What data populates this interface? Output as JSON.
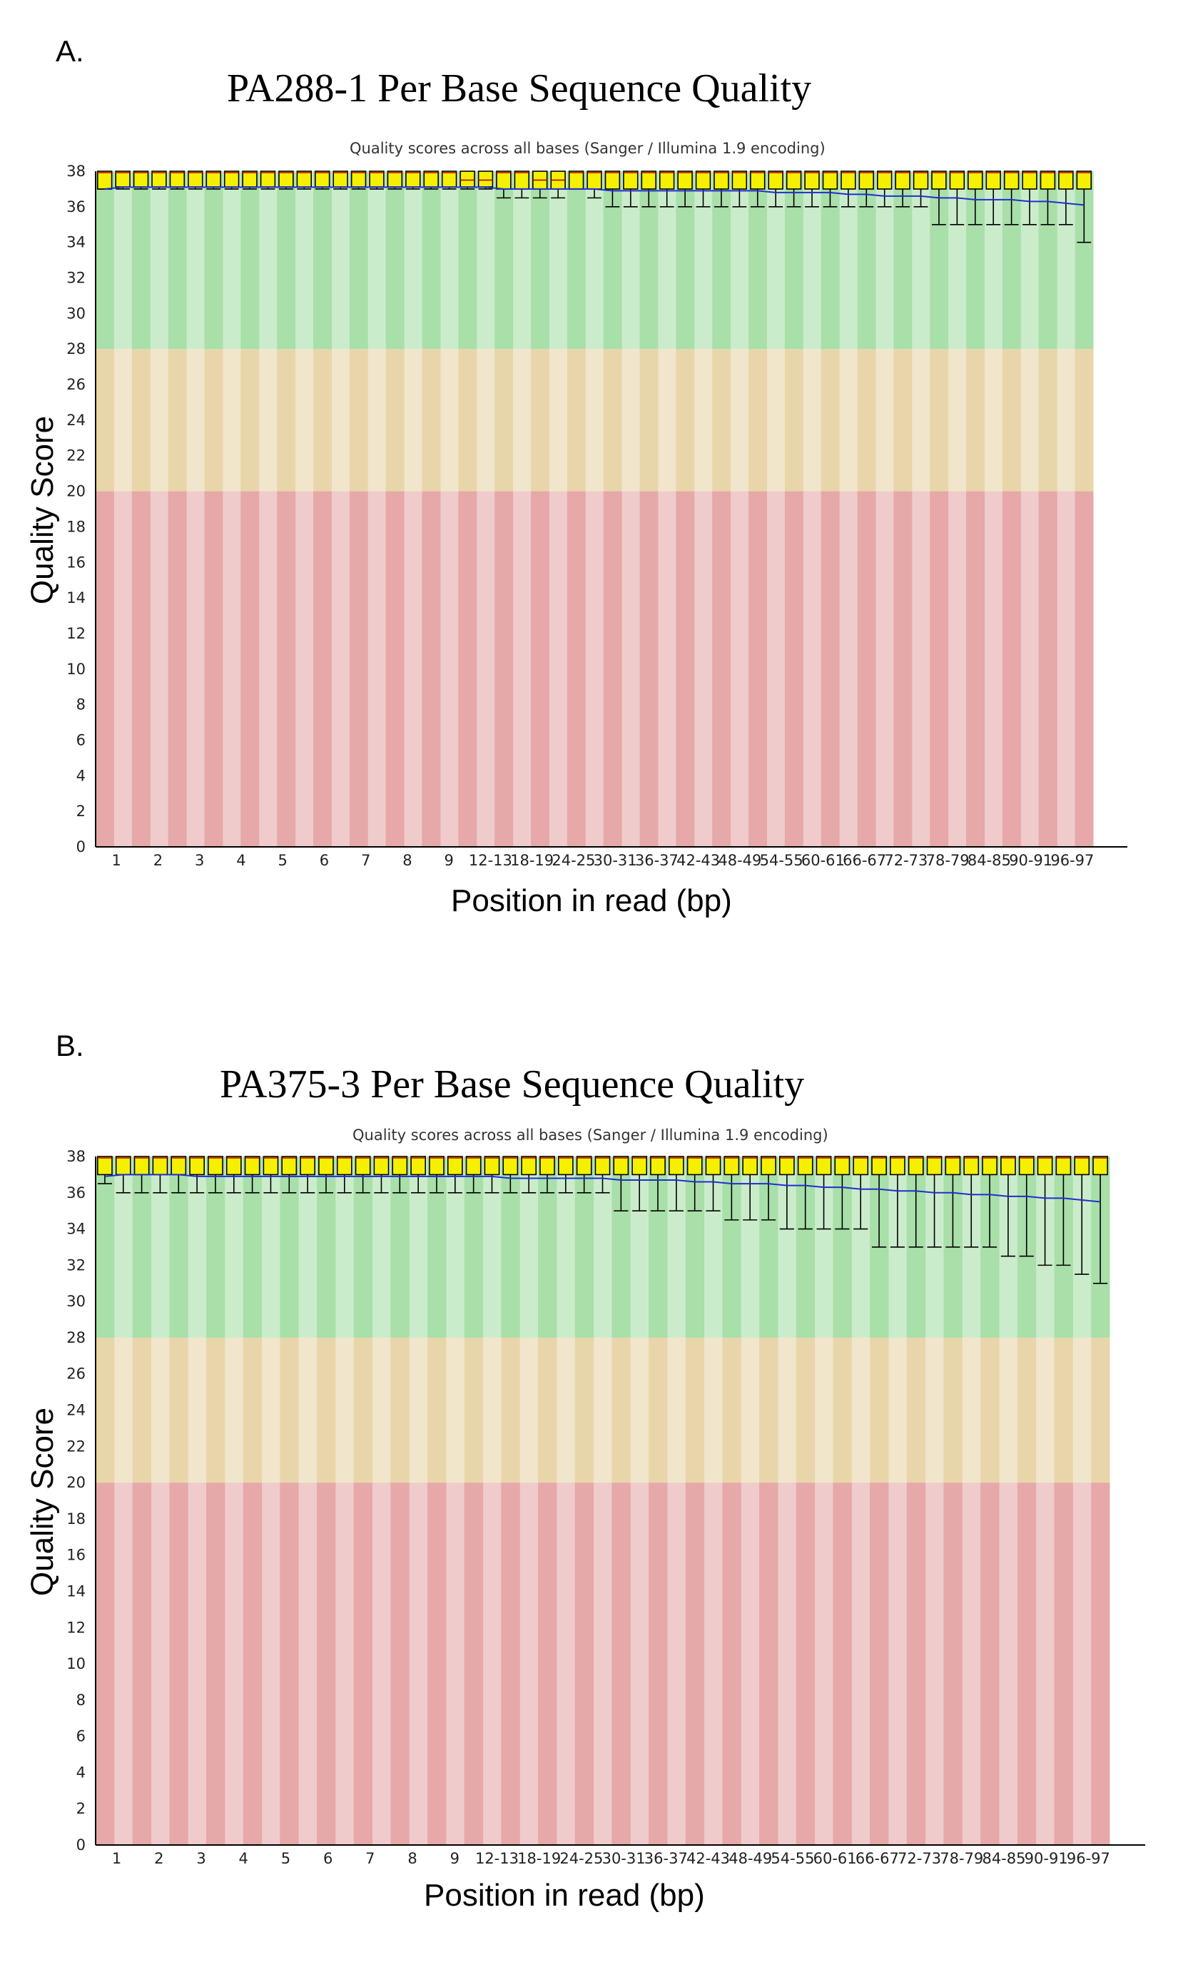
{
  "chart_data": [
    {
      "type": "box",
      "panel_label": "A.",
      "title": "PA288-1 Per Base Sequence Quality",
      "subtitle": "Quality scores across all bases (Sanger / Illumina 1.9 encoding)",
      "xlabel": "Position in read (bp)",
      "ylabel": "Quality Score",
      "ylim": [
        0,
        38
      ],
      "yticks": [
        0,
        2,
        4,
        6,
        8,
        10,
        12,
        14,
        16,
        18,
        20,
        22,
        24,
        26,
        28,
        30,
        32,
        34,
        36,
        38
      ],
      "zones": [
        {
          "name": "poor",
          "from": 0,
          "to": 20,
          "color": "#e6a8a8"
        },
        {
          "name": "reasonable",
          "from": 20,
          "to": 28,
          "color": "#e8d6aa"
        },
        {
          "name": "good",
          "from": 28,
          "to": 38,
          "color": "#a9dfa9"
        }
      ],
      "categories": [
        "1",
        "2",
        "3",
        "4",
        "5",
        "6",
        "7",
        "8",
        "9",
        "10-11",
        "12-13",
        "14-15",
        "16-17",
        "18-19",
        "20-21",
        "22-23",
        "24-25",
        "26-27",
        "28-29",
        "30-31",
        "32-33",
        "34-35",
        "36-37",
        "38-39",
        "40-41",
        "42-43",
        "44-45",
        "46-47",
        "48-49",
        "50-51",
        "52-53",
        "54-55",
        "56-57",
        "58-59",
        "60-61",
        "62-63",
        "64-65",
        "66-67",
        "68-69",
        "70-71",
        "72-73",
        "74-75",
        "76-77",
        "78-79",
        "80-81",
        "82-83",
        "84-85",
        "86-87",
        "88-89",
        "90-91",
        "92-93",
        "94-95",
        "96-97",
        "98-99",
        "100-101"
      ],
      "tick_labels": [
        "1",
        "2",
        "3",
        "4",
        "5",
        "6",
        "7",
        "8",
        "9",
        "12-13",
        "18-19",
        "24-25",
        "30-31",
        "36-37",
        "42-43",
        "48-49",
        "54-55",
        "60-61",
        "66-67",
        "72-73",
        "78-79",
        "84-85",
        "90-91",
        "96-97"
      ],
      "series": [
        {
          "name": "upper_quartile",
          "values": [
            38,
            38,
            38,
            38,
            38,
            38,
            38,
            38,
            38,
            38,
            38,
            38,
            38,
            38,
            38,
            38,
            38,
            38,
            38,
            38,
            38,
            38,
            38,
            38,
            38,
            38,
            38,
            38,
            38,
            38,
            38,
            38,
            38,
            38,
            38,
            38,
            38,
            38,
            38,
            38,
            38,
            38,
            38,
            38,
            38,
            38,
            38,
            38,
            38,
            38,
            38,
            38,
            38,
            38,
            38
          ]
        },
        {
          "name": "median",
          "values": [
            38,
            38,
            38,
            38,
            38,
            38,
            38,
            38,
            38,
            38,
            38,
            38,
            38,
            38,
            38,
            38,
            38,
            38,
            38,
            38,
            37.5,
            37.5,
            38,
            38,
            37.5,
            37.5,
            38,
            38,
            38,
            38,
            38,
            38,
            38,
            38,
            38,
            38,
            38,
            38,
            38,
            38,
            38,
            38,
            38,
            38,
            38,
            38,
            38,
            38,
            38,
            38,
            38,
            38,
            38,
            38,
            38
          ]
        },
        {
          "name": "lower_quartile",
          "values": [
            37,
            37.2,
            37.2,
            37.2,
            37.2,
            37.2,
            37.2,
            37.2,
            37.2,
            37.2,
            37.2,
            37.2,
            37.2,
            37.2,
            37.2,
            37.2,
            37.2,
            37.2,
            37.2,
            37.2,
            37.2,
            37.2,
            37,
            37,
            37,
            37,
            37,
            37,
            37,
            37,
            37,
            37,
            37,
            37,
            37,
            37,
            37,
            37,
            37,
            37,
            37,
            37,
            37,
            37,
            37,
            37,
            37,
            37,
            37,
            37,
            37,
            37,
            37,
            37,
            37
          ]
        },
        {
          "name": "lower_whisker",
          "values": [
            37,
            37,
            37,
            37,
            37,
            37,
            37,
            37,
            37,
            37,
            37,
            37,
            37,
            37,
            37,
            37,
            37,
            37,
            37,
            37,
            37,
            37,
            36.5,
            36.5,
            36.5,
            36.5,
            37,
            36.5,
            36,
            36,
            36,
            36,
            36,
            36,
            36,
            36,
            36,
            36,
            36,
            36,
            36,
            36,
            36,
            36,
            36,
            36,
            35,
            35,
            35,
            35,
            35,
            35,
            35,
            35,
            34
          ]
        },
        {
          "name": "mean",
          "values": [
            37.0,
            37.1,
            37.1,
            37.1,
            37.1,
            37.1,
            37.1,
            37.1,
            37.1,
            37.1,
            37.1,
            37.1,
            37.1,
            37.1,
            37.1,
            37.1,
            37.1,
            37.1,
            37.1,
            37.1,
            37.1,
            37.1,
            37.0,
            37.0,
            37.0,
            37.0,
            37.0,
            37.0,
            36.9,
            36.9,
            36.9,
            36.9,
            36.9,
            36.9,
            36.9,
            36.9,
            36.9,
            36.8,
            36.8,
            36.8,
            36.8,
            36.7,
            36.7,
            36.6,
            36.6,
            36.6,
            36.5,
            36.5,
            36.4,
            36.4,
            36.4,
            36.3,
            36.3,
            36.2,
            36.1
          ]
        }
      ]
    },
    {
      "type": "box",
      "panel_label": "B.",
      "title": "PA375-3 Per Base Sequence Quality",
      "subtitle": "Quality scores across all bases (Sanger / Illumina 1.9 encoding)",
      "xlabel": "Position in read (bp)",
      "ylabel": "Quality Score",
      "ylim": [
        0,
        38
      ],
      "yticks": [
        0,
        2,
        4,
        6,
        8,
        10,
        12,
        14,
        16,
        18,
        20,
        22,
        24,
        26,
        28,
        30,
        32,
        34,
        36,
        38
      ],
      "zones": [
        {
          "name": "poor",
          "from": 0,
          "to": 20,
          "color": "#e6a8a8"
        },
        {
          "name": "reasonable",
          "from": 20,
          "to": 28,
          "color": "#e8d6aa"
        },
        {
          "name": "good",
          "from": 28,
          "to": 38,
          "color": "#a9dfa9"
        }
      ],
      "categories": [
        "1",
        "2",
        "3",
        "4",
        "5",
        "6",
        "7",
        "8",
        "9",
        "10-11",
        "12-13",
        "14-15",
        "16-17",
        "18-19",
        "20-21",
        "22-23",
        "24-25",
        "26-27",
        "28-29",
        "30-31",
        "32-33",
        "34-35",
        "36-37",
        "38-39",
        "40-41",
        "42-43",
        "44-45",
        "46-47",
        "48-49",
        "50-51",
        "52-53",
        "54-55",
        "56-57",
        "58-59",
        "60-61",
        "62-63",
        "64-65",
        "66-67",
        "68-69",
        "70-71",
        "72-73",
        "74-75",
        "76-77",
        "78-79",
        "80-81",
        "82-83",
        "84-85",
        "86-87",
        "88-89",
        "90-91",
        "92-93",
        "94-95",
        "96-97",
        "98-99",
        "100-101"
      ],
      "tick_labels": [
        "1",
        "2",
        "3",
        "4",
        "5",
        "6",
        "7",
        "8",
        "9",
        "12-13",
        "18-19",
        "24-25",
        "30-31",
        "36-37",
        "42-43",
        "48-49",
        "54-55",
        "60-61",
        "66-67",
        "72-73",
        "78-79",
        "84-85",
        "90-91",
        "96-97"
      ],
      "series": [
        {
          "name": "upper_quartile",
          "values": [
            38,
            38,
            38,
            38,
            38,
            38,
            38,
            38,
            38,
            38,
            38,
            38,
            38,
            38,
            38,
            38,
            38,
            38,
            38,
            38,
            38,
            38,
            38,
            38,
            38,
            38,
            38,
            38,
            38,
            38,
            38,
            38,
            38,
            38,
            38,
            38,
            38,
            38,
            38,
            38,
            38,
            38,
            38,
            38,
            38,
            38,
            38,
            38,
            38,
            38,
            38,
            38,
            38,
            38,
            38
          ]
        },
        {
          "name": "median",
          "values": [
            38,
            38,
            38,
            38,
            38,
            38,
            38,
            38,
            38,
            38,
            38,
            38,
            38,
            38,
            38,
            38,
            38,
            38,
            38,
            38,
            38,
            38,
            38,
            38,
            38,
            38,
            38,
            38,
            38,
            38,
            38,
            38,
            38,
            38,
            38,
            38,
            38,
            38,
            38,
            38,
            38,
            38,
            38,
            38,
            38,
            38,
            38,
            38,
            38,
            38,
            38,
            38,
            38,
            38,
            38
          ]
        },
        {
          "name": "lower_quartile",
          "values": [
            37,
            37,
            37,
            37,
            37,
            37,
            37,
            37,
            37,
            37,
            37,
            37,
            37,
            37,
            37,
            37,
            37,
            37,
            37,
            37,
            37,
            37,
            37,
            37,
            37,
            37,
            37,
            37,
            37,
            37,
            37,
            37,
            37,
            37,
            37,
            37,
            37,
            37,
            37,
            37,
            37,
            37,
            37,
            37,
            37,
            37,
            37,
            37,
            37,
            37,
            37,
            37,
            37,
            37,
            37
          ]
        },
        {
          "name": "lower_whisker",
          "values": [
            36.5,
            36,
            36,
            36,
            36,
            36,
            36,
            36,
            36,
            36,
            36,
            36,
            36,
            36,
            36,
            36,
            36,
            36,
            36,
            36,
            36,
            36,
            36,
            36,
            36,
            36,
            36,
            36,
            35,
            35,
            35,
            35,
            35,
            35,
            34.5,
            34.5,
            34.5,
            34,
            34,
            34,
            34,
            34,
            33,
            33,
            33,
            33,
            33,
            33,
            33,
            32.5,
            32.5,
            32,
            32,
            31.5,
            31
          ]
        },
        {
          "name": "mean",
          "values": [
            36.9,
            37.0,
            37.0,
            37.0,
            37.0,
            36.9,
            36.9,
            36.9,
            36.9,
            36.9,
            36.9,
            36.9,
            36.9,
            36.9,
            36.9,
            36.9,
            36.9,
            36.9,
            36.9,
            36.9,
            36.9,
            36.9,
            36.8,
            36.8,
            36.8,
            36.8,
            36.8,
            36.8,
            36.7,
            36.7,
            36.7,
            36.7,
            36.6,
            36.6,
            36.5,
            36.5,
            36.5,
            36.4,
            36.4,
            36.3,
            36.3,
            36.2,
            36.2,
            36.1,
            36.1,
            36.0,
            36.0,
            35.9,
            35.9,
            35.8,
            35.8,
            35.7,
            35.7,
            35.6,
            35.5
          ]
        }
      ]
    }
  ]
}
